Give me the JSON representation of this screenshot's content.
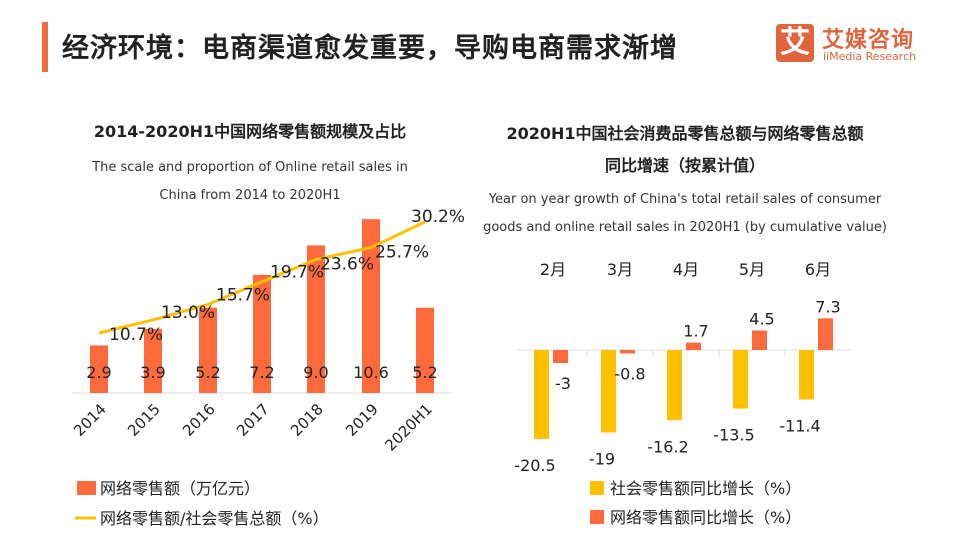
{
  "header": {
    "title": "经济环境：电商渠道愈发重要，导购电商需求渐增",
    "logo_cn": "艾媒咨询",
    "logo_en": "iiMedia Research",
    "logo_mark": "艾"
  },
  "colors": {
    "accent": "#f26a3f",
    "orange": "#ff6a3d",
    "yellow": "#ffc000"
  },
  "chart_data": [
    {
      "type": "bar",
      "title": "2014-2020H1中国网络零售额规模及占比",
      "subtitle_line1": "The scale and proportion of Online retail sales in",
      "subtitle_line2": "China from 2014 to 2020H1",
      "categories": [
        "2014",
        "2015",
        "2016",
        "2017",
        "2018",
        "2019",
        "2020H1"
      ],
      "series": [
        {
          "name": "网络零售额（万亿元）",
          "type": "bar",
          "color": "#ff6a3d",
          "values": [
            2.9,
            3.9,
            5.2,
            7.2,
            9.0,
            10.6,
            5.2
          ],
          "labels": [
            "2.9",
            "3.9",
            "5.2",
            "7.2",
            "9.0",
            "10.6",
            "5.2"
          ]
        },
        {
          "name": "网络零售额/社会零售总额（%）",
          "type": "line",
          "color": "#ffc000",
          "values": [
            10.7,
            13.0,
            15.7,
            19.7,
            23.6,
            25.7,
            30.2
          ],
          "labels": [
            "10.7%",
            "13.0%",
            "15.7%",
            "19.7%",
            "23.6%",
            "25.7%",
            "30.2%"
          ]
        }
      ],
      "legend": "bottom-left"
    },
    {
      "type": "bar",
      "title_line1": "2020H1中国社会消费品零售总额与网络零售总额",
      "title_line2": "同比增速（按累计值）",
      "subtitle_line1": "Year on year growth of China's total retail sales of consumer",
      "subtitle_line2": "goods and online retail sales in 2020H1 (by cumulative value)",
      "categories": [
        "2月",
        "3月",
        "4月",
        "5月",
        "6月"
      ],
      "series": [
        {
          "name": "社会零售额同比增长（%）",
          "color": "#ffc000",
          "values": [
            -20.5,
            -19,
            -16.2,
            -13.5,
            -11.4
          ],
          "labels": [
            "-20.5",
            "-19",
            "-16.2",
            "-13.5",
            "-11.4"
          ]
        },
        {
          "name": "网络零售额同比增长（%）",
          "color": "#ff6a3d",
          "values": [
            -3,
            -0.8,
            1.7,
            4.5,
            7.3
          ],
          "labels": [
            "-3",
            "-0.8",
            "1.7",
            "4.5",
            "7.3"
          ]
        }
      ],
      "legend": "bottom"
    }
  ]
}
